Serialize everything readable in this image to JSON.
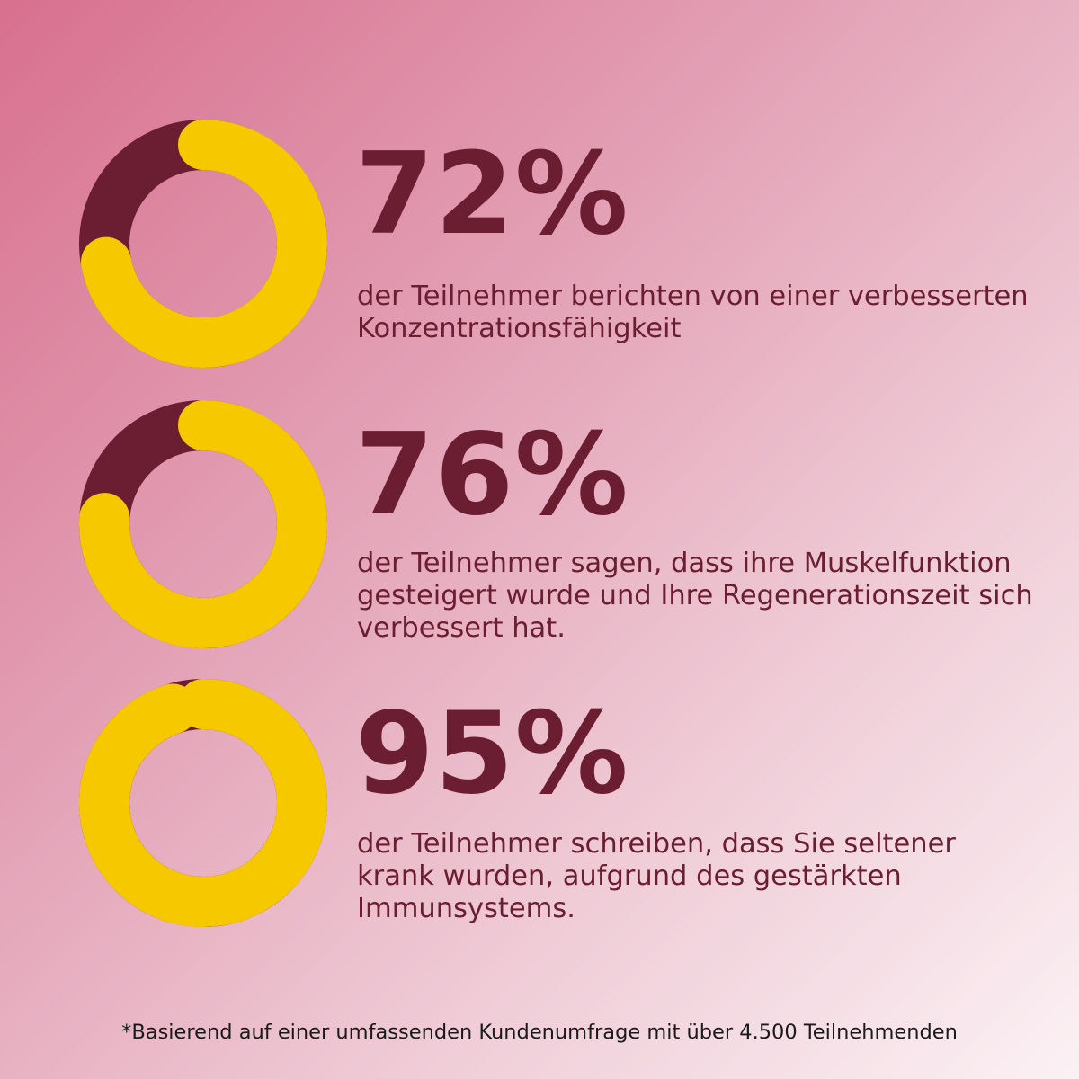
{
  "colors": {
    "accent": "#f6c800",
    "track": "#6b1d32",
    "text": "#6b1d32",
    "footnote": "#1a1a1a"
  },
  "chart_data": [
    {
      "type": "pie",
      "donut": true,
      "values": [
        72,
        28
      ],
      "label": "72%",
      "description": "der Teilnehmer berichten von einer verbesserten Konzentrationsfähigkeit"
    },
    {
      "type": "pie",
      "donut": true,
      "values": [
        76,
        24
      ],
      "label": "76%",
      "description": "der Teilnehmer sagen, dass ihre Muskelfunktion gesteigert wurde und Ihre Regenerationszeit sich verbessert hat."
    },
    {
      "type": "pie",
      "donut": true,
      "values": [
        95,
        5
      ],
      "label": "95%",
      "description": "der Teilnehmer schreiben, dass Sie seltener krank wurden, aufgrund des gestärkten Immunsystems."
    }
  ],
  "footnote": "*Basierend auf einer umfassenden Kundenumfrage mit über 4.500 Teilnehmenden"
}
